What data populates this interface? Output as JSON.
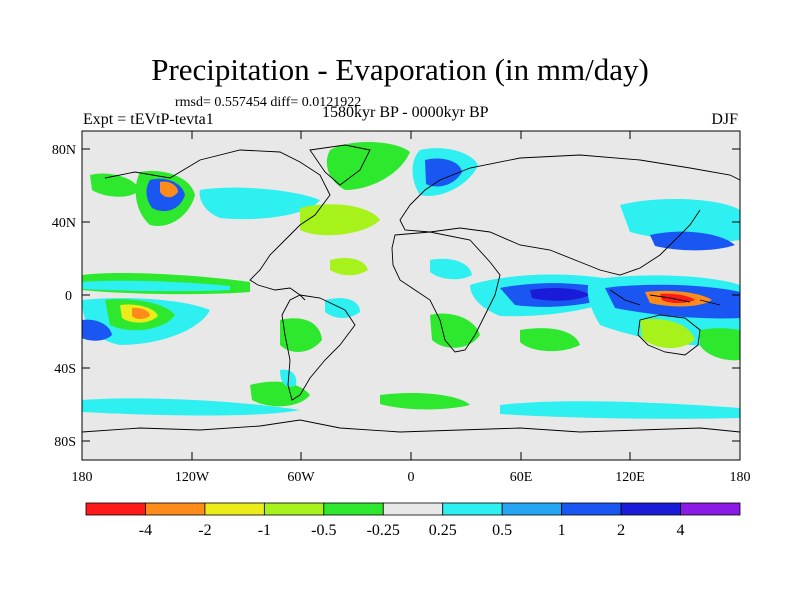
{
  "title": "Precipitation - Evaporation (in mm/day)",
  "stats": "rmsd= 0.557454 diff= 0.0121922",
  "experiment": "Expt = tEVtP-tevta1",
  "period": "1580kyr BP - 0000kyr BP",
  "season": "DJF",
  "lat_ticks": [
    "80N",
    "40N",
    "0",
    "40S",
    "80S"
  ],
  "lon_ticks": [
    "180",
    "120W",
    "60W",
    "0",
    "60E",
    "120E",
    "180"
  ],
  "colorbar": {
    "labels": [
      "-4",
      "-2",
      "-1",
      "-0.5",
      "-0.25",
      "0.25",
      "0.5",
      "1",
      "2",
      "4"
    ],
    "colors": [
      "#ff1a1a",
      "#ff8c1a",
      "#ecec1a",
      "#a6f21a",
      "#2ee82e",
      "#e8e8e8",
      "#2ef0f0",
      "#26a6f2",
      "#1a57f2",
      "#1a1ad9",
      "#8c1ae6"
    ]
  },
  "colors": {
    "land_background": "#e8e8e8",
    "coastline": "#000000"
  }
}
